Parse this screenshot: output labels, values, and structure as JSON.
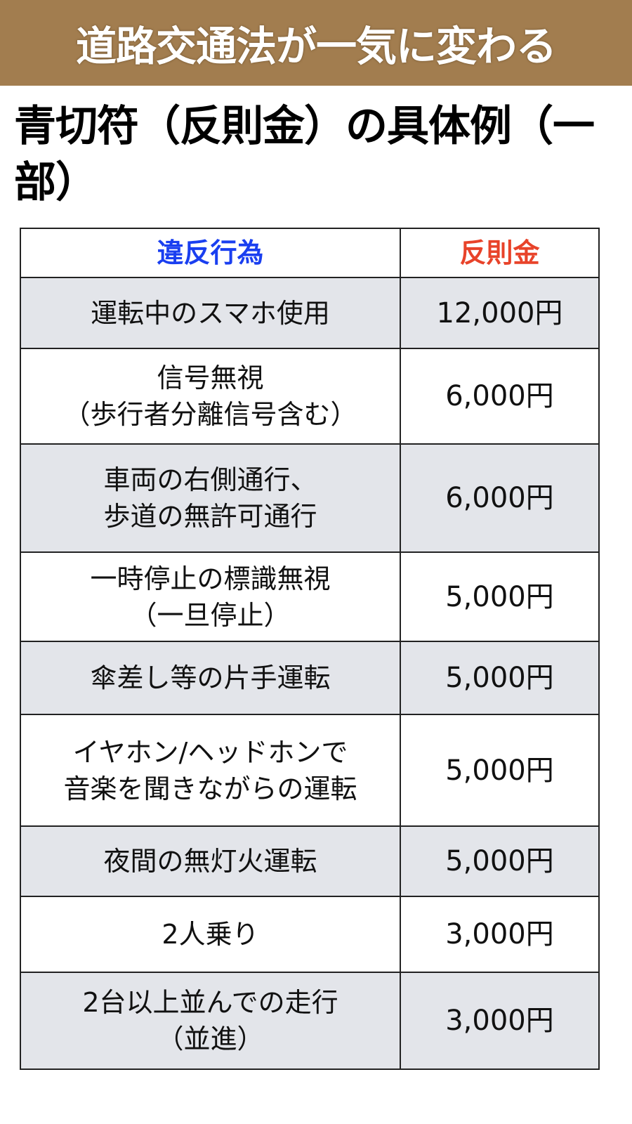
{
  "banner": {
    "title": "道路交通法が一気に変わる",
    "color": "#a27d4f"
  },
  "heading": "青切符（反則金）の具体例（一部）",
  "table": {
    "headers": {
      "violation": "違反行為",
      "fine": "反則金"
    },
    "header_colors": {
      "violation": "#1a3ff0",
      "fine": "#e8432a"
    },
    "rows": [
      {
        "violation": [
          "運転中のスマホ使用"
        ],
        "fine": "12,000円"
      },
      {
        "violation": [
          "信号無視",
          "（歩行者分離信号含む）"
        ],
        "fine": "6,000円"
      },
      {
        "violation": [
          "車両の右側通行、",
          "歩道の無許可通行"
        ],
        "fine": "6,000円"
      },
      {
        "violation": [
          "一時停止の標識無視",
          "（一旦停止）"
        ],
        "fine": "5,000円"
      },
      {
        "violation": [
          "傘差し等の片手運転"
        ],
        "fine": "5,000円"
      },
      {
        "violation": [
          "イヤホン/ヘッドホンで",
          "音楽を聞きながらの運転"
        ],
        "fine": "5,000円"
      },
      {
        "violation": [
          "夜間の無灯火運転"
        ],
        "fine": "5,000円"
      },
      {
        "violation": [
          "2人乗り"
        ],
        "fine": "3,000円"
      },
      {
        "violation": [
          "2台以上並んでの走行",
          "（並進）"
        ],
        "fine": "3,000円"
      }
    ]
  }
}
